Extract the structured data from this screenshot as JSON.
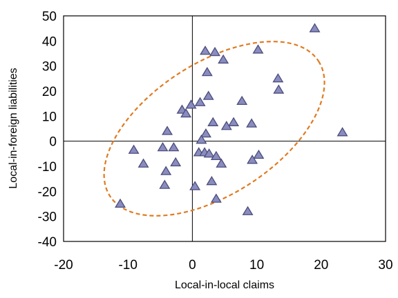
{
  "chart_data": {
    "type": "scatter",
    "title": "",
    "xlabel": "Local-in-local claims",
    "ylabel": "Local-in-foreign liabilities",
    "xlim": [
      -20,
      30
    ],
    "ylim": [
      -40,
      50
    ],
    "xticks": [
      -20,
      -10,
      0,
      10,
      20,
      30
    ],
    "yticks": [
      -40,
      -30,
      -20,
      -10,
      0,
      10,
      20,
      30,
      40,
      50
    ],
    "grid": false,
    "legend": "none",
    "marker": "triangle",
    "marker_fill": "#8a8cc0",
    "marker_edge": "#4a4c7a",
    "ellipse_color": "#e07a20",
    "ellipse_style": "dashed",
    "series": [
      {
        "points": [
          {
            "x": 19,
            "y": 45
          },
          {
            "x": 2,
            "y": 36
          },
          {
            "x": 3.5,
            "y": 35.5
          },
          {
            "x": 10.2,
            "y": 36.5
          },
          {
            "x": 4.8,
            "y": 32.5
          },
          {
            "x": 2.3,
            "y": 27.5
          },
          {
            "x": 13.3,
            "y": 25
          },
          {
            "x": 13.4,
            "y": 20.5
          },
          {
            "x": 2.5,
            "y": 18
          },
          {
            "x": 7.7,
            "y": 16
          },
          {
            "x": 1.2,
            "y": 15.5
          },
          {
            "x": -0.2,
            "y": 14.5
          },
          {
            "x": -1.6,
            "y": 12.5
          },
          {
            "x": -1,
            "y": 11
          },
          {
            "x": 3.2,
            "y": 7.5
          },
          {
            "x": 6.4,
            "y": 7.5
          },
          {
            "x": 9.2,
            "y": 7
          },
          {
            "x": 5.3,
            "y": 6
          },
          {
            "x": -3.9,
            "y": 4
          },
          {
            "x": 23.3,
            "y": 3.5
          },
          {
            "x": 2.1,
            "y": 3
          },
          {
            "x": 1.4,
            "y": 0.5
          },
          {
            "x": -9.1,
            "y": -3.5
          },
          {
            "x": -4.6,
            "y": -2.5
          },
          {
            "x": -2.9,
            "y": -2.5
          },
          {
            "x": 1,
            "y": -4.5
          },
          {
            "x": 1.9,
            "y": -4.5
          },
          {
            "x": 2.6,
            "y": -5
          },
          {
            "x": 3.7,
            "y": -6
          },
          {
            "x": 10.3,
            "y": -5.5
          },
          {
            "x": 9.3,
            "y": -7.5
          },
          {
            "x": -7.6,
            "y": -9
          },
          {
            "x": -2.6,
            "y": -8.5
          },
          {
            "x": 4.5,
            "y": -9
          },
          {
            "x": -4.1,
            "y": -12
          },
          {
            "x": 3,
            "y": -16
          },
          {
            "x": -4.3,
            "y": -17.5
          },
          {
            "x": 0.4,
            "y": -18
          },
          {
            "x": 3.7,
            "y": -23
          },
          {
            "x": -11.2,
            "y": -25
          },
          {
            "x": 8.6,
            "y": -28
          }
        ]
      }
    ],
    "annotation_ellipse": {
      "cx": 3.4,
      "cy": 5,
      "rx": 49.5,
      "ry": 8.5,
      "angle_deg": 57
    }
  }
}
